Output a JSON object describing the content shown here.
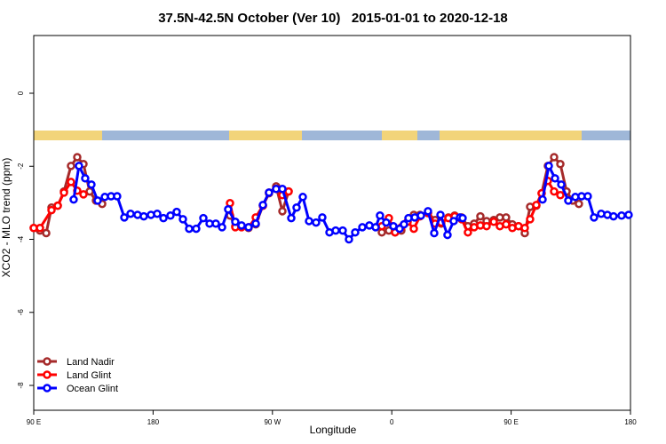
{
  "chart_data": {
    "type": "line",
    "title": "37.5N-42.5N October (Ver 10)   2015-01-01 to 2020-12-18",
    "x_label": "Longitude",
    "y_label": "XCO2 - MLO trend (ppm)",
    "xlim": [
      90,
      540
    ],
    "xticks": [
      {
        "value": 90,
        "label": "90 E"
      },
      {
        "value": 180,
        "label": "180"
      },
      {
        "value": 270,
        "label": "90 W"
      },
      {
        "value": 360,
        "label": "0"
      },
      {
        "value": 450,
        "label": "90 E"
      },
      {
        "value": 540,
        "label": "180"
      }
    ],
    "ylim": [
      -8.68,
      1.58
    ],
    "yticks": [
      -8,
      -6,
      -4,
      -2,
      0
    ],
    "legend": "bottom-left",
    "series": [
      {
        "name": "Land Nadir",
        "color": "#a52a2a",
        "x": [
          90,
          94.7,
          99.4,
          103.4,
          108.1,
          112.8,
          118.1,
          122.8,
          127.5,
          132.2,
          136.9,
          141.6,
          null,
          238,
          242,
          246.7,
          252,
          257.4,
          262.8,
          267.4,
          272.8,
          277.5,
          282.2,
          null,
          352.5,
          357.8,
          362.5,
          367.2,
          371.9,
          376.6,
          381.3,
          387.3,
          392.7,
          397.3,
          402.7,
          407.4,
          412.7,
          417.4,
          422.1,
          426.8,
          431.5,
          436.9,
          441.5,
          446.2,
          450.9,
          455.6,
          460.3,
          464.3,
          469,
          473,
          477.7,
          482.4,
          487.1,
          491.8,
          496.4,
          501.1
        ],
        "values": [
          -3.69,
          -3.76,
          -3.83,
          -3.13,
          -3.08,
          -2.69,
          -1.99,
          -1.75,
          -1.94,
          -2.69,
          -2.94,
          -3.03,
          null,
          -3.35,
          -3.64,
          -3.64,
          -3.69,
          -3.59,
          -3.08,
          -2.74,
          -2.55,
          -3.23,
          -2.69,
          null,
          -3.81,
          -3.76,
          -3.81,
          -3.76,
          -3.52,
          -3.33,
          -3.33,
          -3.28,
          -3.47,
          -3.57,
          -3.4,
          -3.35,
          -3.4,
          -3.64,
          -3.57,
          -3.37,
          -3.5,
          -3.47,
          -3.4,
          -3.4,
          -3.59,
          -3.64,
          -3.83,
          -3.11,
          -3.08,
          -2.74,
          -1.99,
          -1.75,
          -1.94,
          -2.69,
          -2.94,
          -3.03
        ]
      },
      {
        "name": "Land Glint",
        "color": "#ff0000",
        "x": [
          90,
          94.7,
          103.4,
          108.1,
          112.8,
          118.1,
          122.8,
          127.5,
          null,
          238,
          242,
          246.7,
          252,
          257.4,
          262.8,
          267.4,
          272.8,
          277.5,
          282.2,
          null,
          352.5,
          357.8,
          362.5,
          367.2,
          371.9,
          376.6,
          381.3,
          387.3,
          392.7,
          397.3,
          402.7,
          407.4,
          412.7,
          417.4,
          422.1,
          426.8,
          431.5,
          436.9,
          441.5,
          446.2,
          450.9,
          455.6,
          460.3,
          464.3,
          469,
          473,
          477.7,
          482.4,
          487.1
        ],
        "values": [
          -3.69,
          -3.69,
          -3.2,
          -3.08,
          -2.72,
          -2.43,
          -2.67,
          -2.77,
          null,
          -3.01,
          -3.67,
          -3.67,
          -3.67,
          -3.4,
          -3.08,
          -2.72,
          -2.62,
          -2.79,
          -2.69,
          null,
          -3.64,
          -3.42,
          -3.81,
          -3.67,
          -3.52,
          -3.71,
          -3.37,
          -3.28,
          -3.57,
          -3.54,
          -3.42,
          -3.37,
          -3.45,
          -3.81,
          -3.67,
          -3.62,
          -3.64,
          -3.52,
          -3.64,
          -3.59,
          -3.69,
          -3.64,
          -3.69,
          -3.45,
          -3.06,
          -2.74,
          -2.4,
          -2.69,
          -2.79
        ]
      },
      {
        "name": "Ocean Glint",
        "color": "#0000ff",
        "x": [
          120.1,
          124.1,
          128.8,
          133.5,
          138.2,
          143.6,
          148.3,
          152.9,
          158.3,
          163,
          168.3,
          173,
          178.4,
          183.1,
          187.8,
          193.1,
          197.8,
          202.5,
          207.2,
          212.5,
          217.9,
          222.6,
          227.3,
          232,
          236.6,
          242,
          246.7,
          252,
          257.4,
          262.8,
          267.4,
          272.8,
          277.5,
          284.2,
          288.2,
          292.9,
          297.6,
          302.9,
          307.6,
          313,
          317.7,
          323,
          327.7,
          332.4,
          337.8,
          343.1,
          347.8,
          351.1,
          355.8,
          361.2,
          365.9,
          369.2,
          372.6,
          377.3,
          382,
          387.3,
          392,
          396.7,
          402,
          406.7,
          411.4,
          413.4,
          null,
          473.7,
          478.4,
          483.1,
          487.8,
          493.1,
          498.4,
          503.1,
          507.8,
          512.5,
          517.9,
          522.6,
          527.2,
          533.3,
          538.6
        ],
        "values": [
          -2.91,
          -1.99,
          -2.33,
          -2.5,
          -2.94,
          -2.84,
          -2.82,
          -2.82,
          -3.4,
          -3.3,
          -3.33,
          -3.37,
          -3.33,
          -3.3,
          -3.42,
          -3.35,
          -3.25,
          -3.45,
          -3.71,
          -3.71,
          -3.42,
          -3.57,
          -3.57,
          -3.67,
          -3.18,
          -3.52,
          -3.62,
          -3.67,
          -3.57,
          -3.06,
          -2.72,
          -2.62,
          -2.62,
          -3.42,
          -3.13,
          -2.84,
          -3.5,
          -3.54,
          -3.4,
          -3.81,
          -3.76,
          -3.76,
          -4.0,
          -3.81,
          -3.67,
          -3.62,
          -3.67,
          -3.35,
          -3.54,
          -3.64,
          -3.71,
          -3.59,
          -3.42,
          -3.4,
          -3.35,
          -3.23,
          -3.83,
          -3.33,
          -3.88,
          -3.5,
          -3.4,
          -3.42,
          null,
          -2.91,
          -1.99,
          -2.33,
          -2.5,
          -2.94,
          -2.84,
          -2.82,
          -2.82,
          -3.4,
          -3.3,
          -3.33,
          -3.37,
          -3.35,
          -3.33
        ]
      }
    ]
  }
}
